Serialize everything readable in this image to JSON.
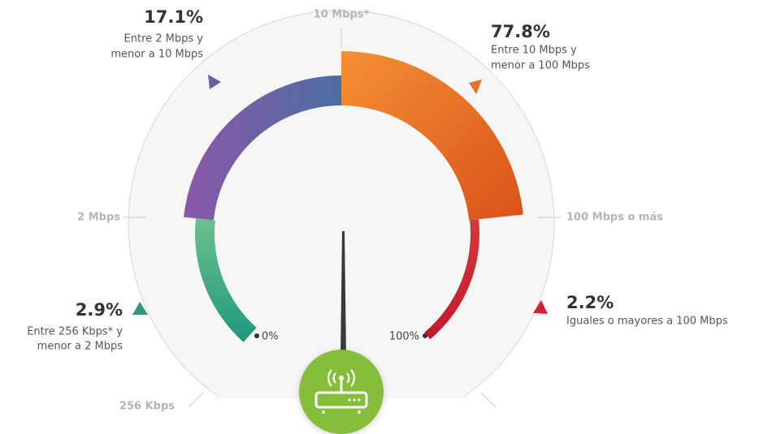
{
  "segments": [
    {
      "percent": "17.1%",
      "lines": [
        "Entre 2 Mbps y",
        "menor a 10 Mbps"
      ]
    },
    {
      "percent": "77.8%",
      "lines": [
        "Entre 10 Mbps y",
        "menor a 100 Mbps"
      ]
    },
    {
      "percent": "2.9%",
      "lines": [
        "Entre 256 Kbps* y",
        "menor a 2 Mbps"
      ]
    },
    {
      "percent": "2.2%",
      "lines": [
        "Iguales o mayores a 100 Mbps"
      ]
    }
  ],
  "scale": {
    "top": "10 Mbps*",
    "left": "2 Mbps",
    "right": "100 Mbps o más",
    "bottom": "256 Kbps"
  },
  "ends": {
    "start": "0%",
    "end": "100%"
  }
}
